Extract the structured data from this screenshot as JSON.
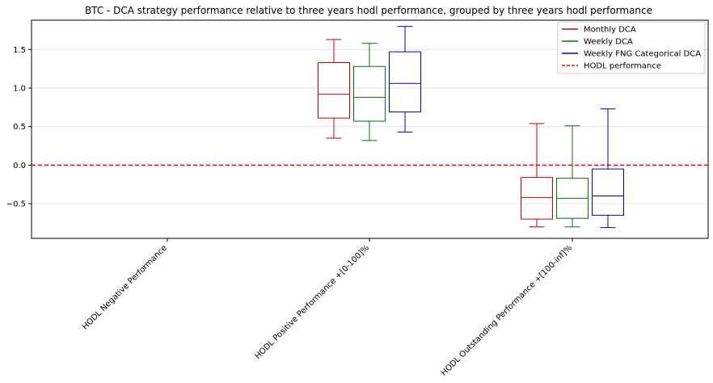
{
  "chart_data": {
    "type": "box",
    "title": "BTC - DCA strategy performance relative to three years hodl performance, grouped by three years hodl performance",
    "categories": [
      "HODL Negative Performance",
      "HODL Positive Performance +[0-100]%",
      "HODL Outstanding Performance +[100-inf]%"
    ],
    "ylim": [
      -0.95,
      1.88
    ],
    "yticks": [
      -0.5,
      0.0,
      0.5,
      1.0,
      1.5
    ],
    "ytick_labels": [
      "−0.5",
      "0.0",
      "0.5",
      "1.0",
      "1.5"
    ],
    "grid": "horizontal",
    "legend_position": "top-right",
    "reference_line": {
      "name": "HODL performance",
      "y": 0.0,
      "color": "#ff0000",
      "style": "dashed"
    },
    "series": [
      {
        "name": "Monthly DCA",
        "color": "#cc0000",
        "boxes": [
          null,
          {
            "min": 0.35,
            "q1": 0.61,
            "median": 0.92,
            "q3": 1.33,
            "max": 1.63
          },
          {
            "min": -0.8,
            "q1": -0.7,
            "median": -0.42,
            "q3": -0.16,
            "max": 0.54
          }
        ]
      },
      {
        "name": "Weekly DCA",
        "color": "#007700",
        "boxes": [
          null,
          {
            "min": 0.32,
            "q1": 0.57,
            "median": 0.88,
            "q3": 1.28,
            "max": 1.58
          },
          {
            "min": -0.8,
            "q1": -0.69,
            "median": -0.43,
            "q3": -0.17,
            "max": 0.51
          }
        ]
      },
      {
        "name": "Weekly FNG Categorical DCA",
        "color": "#0000cc",
        "boxes": [
          null,
          {
            "min": 0.43,
            "q1": 0.69,
            "median": 1.06,
            "q3": 1.47,
            "max": 1.8
          },
          {
            "min": -0.81,
            "q1": -0.65,
            "median": -0.4,
            "q3": -0.05,
            "max": 0.73
          }
        ]
      }
    ]
  }
}
